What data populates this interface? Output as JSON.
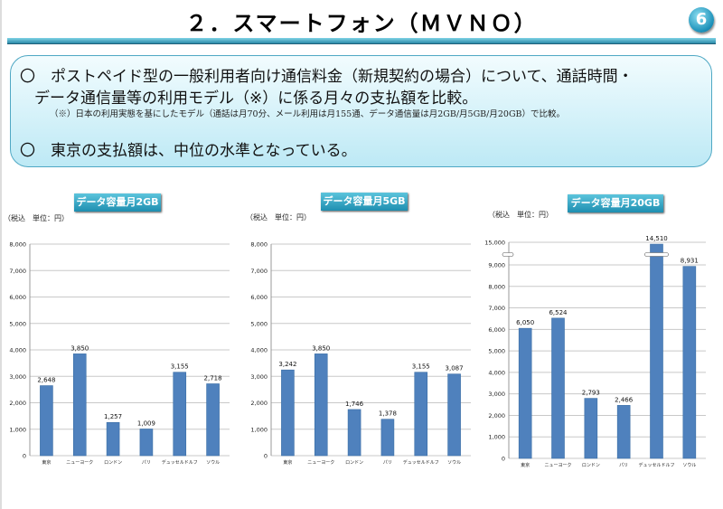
{
  "title": "２．スマートフォン（ＭＶＮＯ）",
  "page_badge": "6",
  "summary": {
    "bullet1_line1": "〇　ポストペイド型の一般利用者向け通信料金（新規契約の場合）について、通話時間・",
    "bullet1_line2": "データ通信量等の利用モデル（※）に係る月々の支払額を比較。",
    "note": "（※）日本の利用実態を基にしたモデル（通話は月70分、メール利用は月155通、データ通信量は月2GB/月5GB/月20GB）で比較。",
    "bullet2": "〇　東京の支払額は、中位の水準となっている。"
  },
  "colors": {
    "bar": "#4f81bd",
    "accent": "#1e8eb0"
  },
  "chart_data": [
    {
      "type": "bar",
      "title": "データ容量月2GB",
      "unit_label": "（税込　単位：円）",
      "categories": [
        "東京",
        "ニューヨーク",
        "ロンドン",
        "パリ",
        "デュッセルドルフ",
        "ソウル"
      ],
      "values": [
        2648,
        3850,
        1257,
        1009,
        3155,
        2718
      ],
      "value_labels": [
        "2,648",
        "3,850",
        "1,257",
        "1,009",
        "3,155",
        "2,718"
      ],
      "ylim": [
        0,
        8000
      ],
      "yticks": [
        "0",
        "1,000",
        "2,000",
        "3,000",
        "4,000",
        "5,000",
        "6,000",
        "7,000",
        "8,000"
      ],
      "grid": true
    },
    {
      "type": "bar",
      "title": "データ容量月5GB",
      "unit_label": "（税込　単位：円）",
      "categories": [
        "東京",
        "ニューヨーク",
        "ロンドン",
        "パリ",
        "デュッセルドルフ",
        "ソウル"
      ],
      "values": [
        3242,
        3850,
        1746,
        1378,
        3155,
        3087
      ],
      "value_labels": [
        "3,242",
        "3,850",
        "1,746",
        "1,378",
        "3,155",
        "3,087"
      ],
      "ylim": [
        0,
        8000
      ],
      "yticks": [
        "0",
        "1,000",
        "2,000",
        "3,000",
        "4,000",
        "5,000",
        "6,000",
        "7,000",
        "8,000"
      ],
      "grid": true
    },
    {
      "type": "bar",
      "title": "データ容量月20GB",
      "unit_label": "（税込　単位：円）",
      "categories": [
        "東京",
        "ニューヨーク",
        "ロンドン",
        "パリ",
        "デュッセルドルフ",
        "ソウル"
      ],
      "values": [
        6050,
        6524,
        2793,
        2466,
        14510,
        8931
      ],
      "value_labels": [
        "6,050",
        "6,524",
        "2,793",
        "2,466",
        "14,510",
        "8,931"
      ],
      "ylim": [
        0,
        15000
      ],
      "axis_break": [
        9000,
        15000
      ],
      "yticks": [
        "0",
        "1,000",
        "2,000",
        "3,000",
        "4,000",
        "5,000",
        "6,000",
        "7,000",
        "8,000",
        "9,000",
        "15,000"
      ],
      "grid": true
    }
  ]
}
